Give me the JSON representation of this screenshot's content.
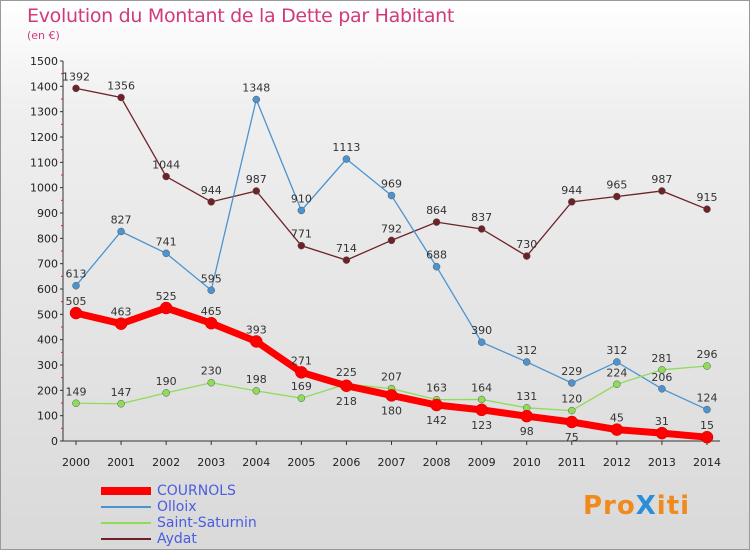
{
  "chart_data": {
    "type": "line",
    "title": "Evolution du Montant de la Dette par Habitant",
    "subtitle": "(en €)",
    "xlabel": "",
    "ylabel": "(en €)",
    "ylim": [
      0,
      1500
    ],
    "yticks": [
      0,
      100,
      200,
      300,
      400,
      500,
      600,
      700,
      800,
      900,
      1000,
      1100,
      1200,
      1300,
      1400,
      1500
    ],
    "x": [
      "2000",
      "2001",
      "2002",
      "2003",
      "2004",
      "2005",
      "2006",
      "2007",
      "2008",
      "2009",
      "2010",
      "2011",
      "2012",
      "2013",
      "2014"
    ],
    "legend_position": "bottom-left",
    "series": [
      {
        "name": "COURNOLS",
        "color": "#ff0000",
        "values": [
          505,
          463,
          525,
          465,
          393,
          271,
          218,
          180,
          142,
          123,
          98,
          75,
          45,
          31,
          15
        ]
      },
      {
        "name": "Olloix",
        "color": "#4b94d0",
        "values": [
          613,
          827,
          741,
          595,
          1348,
          910,
          1113,
          969,
          688,
          390,
          312,
          229,
          312,
          206,
          124
        ]
      },
      {
        "name": "Saint-Saturnin",
        "color": "#8fdc5a",
        "values": [
          149,
          147,
          190,
          230,
          198,
          169,
          225,
          207,
          163,
          164,
          131,
          120,
          224,
          281,
          296
        ]
      },
      {
        "name": "Aydat",
        "color": "#6e2228",
        "values": [
          1392,
          1356,
          1044,
          944,
          987,
          771,
          714,
          792,
          864,
          837,
          730,
          944,
          965,
          987,
          915
        ]
      }
    ]
  },
  "logo": {
    "text": "ProXiti"
  }
}
